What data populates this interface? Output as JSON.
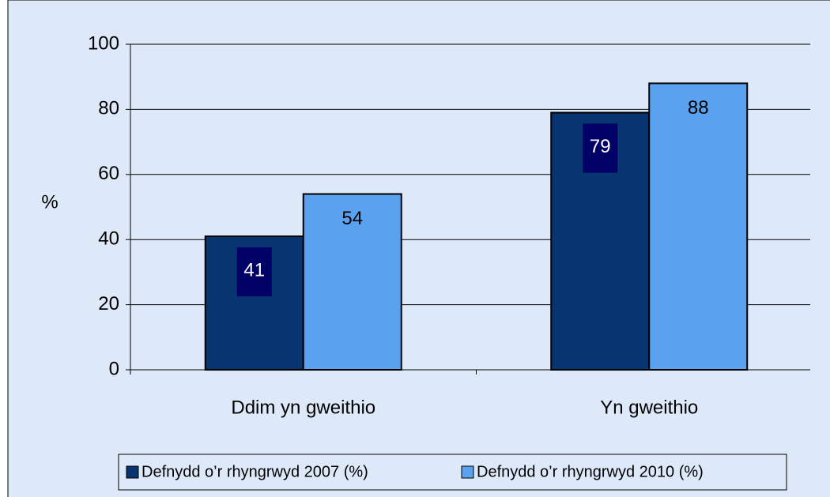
{
  "chart_data": {
    "type": "bar",
    "y_label": "%",
    "categories": [
      "Ddim yn gweithio",
      "Yn gweithio"
    ],
    "series": [
      {
        "name": "Defnydd o’r rhyngrwyd 2007 (%)",
        "color": "#083470",
        "values": [
          41,
          79
        ]
      },
      {
        "name": "Defnydd o’r rhyngrwyd 2010 (%)",
        "color": "#5aa2f0",
        "values": [
          54,
          88
        ]
      }
    ],
    "ylim": [
      0,
      100
    ],
    "yticks": [
      0,
      20,
      40,
      60,
      80,
      100
    ],
    "grid": true,
    "legend": "bottom"
  }
}
